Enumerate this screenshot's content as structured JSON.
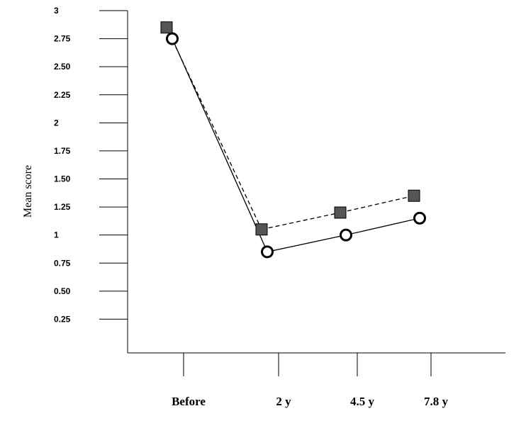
{
  "chart_data": {
    "type": "line",
    "ylabel": "Mean score",
    "xlabel": "",
    "categories": [
      "Before",
      "2 y",
      "4.5 y",
      "7.8 y"
    ],
    "ylim": [
      0,
      3
    ],
    "y_ticks": [
      {
        "value": 3,
        "label": "3"
      },
      {
        "value": 2.75,
        "label": "2.75"
      },
      {
        "value": 2.5,
        "label": "2.50"
      },
      {
        "value": 2.25,
        "label": "2.25"
      },
      {
        "value": 2,
        "label": "2"
      },
      {
        "value": 1.75,
        "label": "1.75"
      },
      {
        "value": 1.5,
        "label": "1.50"
      },
      {
        "value": 1.25,
        "label": "1.25"
      },
      {
        "value": 1,
        "label": "1"
      },
      {
        "value": 0.75,
        "label": "0.75"
      },
      {
        "value": 0.5,
        "label": "0.50"
      },
      {
        "value": 0.25,
        "label": "0.25"
      }
    ],
    "series": [
      {
        "marker": "square",
        "line_style": "dashed",
        "color": "#555555",
        "values": [
          2.85,
          1.05,
          1.2,
          1.35
        ]
      },
      {
        "marker": "circle",
        "line_style": "solid",
        "color": "#000000",
        "values": [
          2.75,
          0.85,
          1.0,
          1.15
        ]
      }
    ],
    "grid": false,
    "legend": "none"
  }
}
